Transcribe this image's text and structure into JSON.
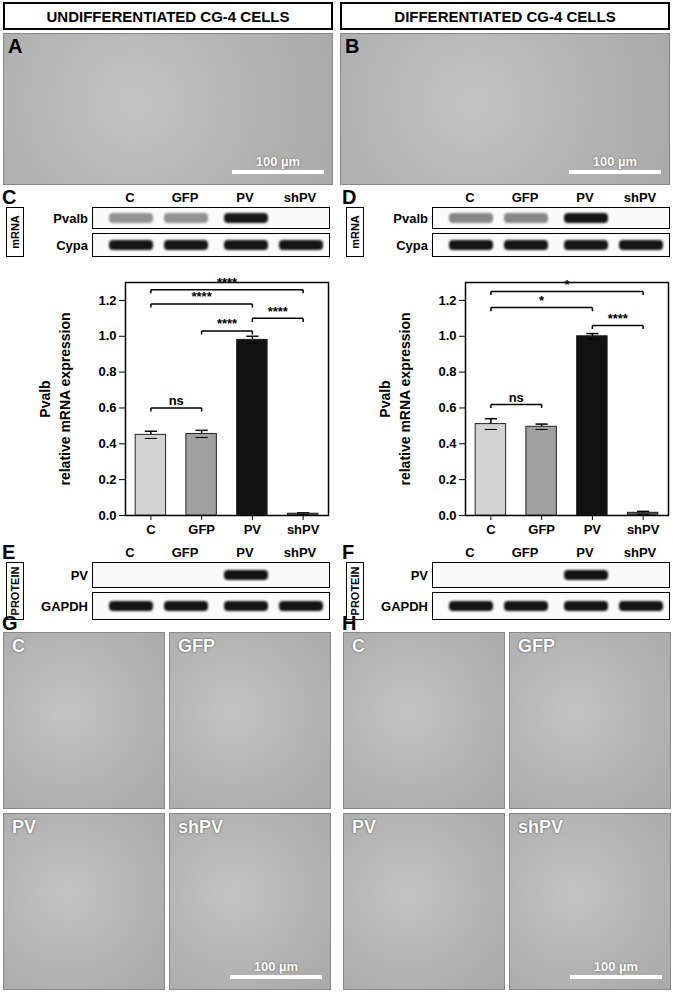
{
  "header": [
    "UNDIFFERENTIATED CG-4 CELLS",
    "DIFFERENTIATED CG-4 CELLS"
  ],
  "panels": {
    "A": {
      "letter": "A",
      "scale_bar": "100 µm"
    },
    "B": {
      "letter": "B",
      "scale_bar": "100 µm"
    },
    "C": {
      "letter": "C",
      "box_label": "mRNA",
      "lanes": [
        "C",
        "GFP",
        "PV",
        "shPV"
      ],
      "rows": [
        {
          "name": "Pvalb",
          "band_intensity": [
            0.45,
            0.45,
            0.98,
            0
          ]
        },
        {
          "name": "Cypa",
          "band_intensity": [
            1,
            1,
            1,
            1
          ]
        }
      ]
    },
    "D": {
      "letter": "D",
      "box_label": "mRNA",
      "lanes": [
        "C",
        "GFP",
        "PV",
        "shPV"
      ],
      "rows": [
        {
          "name": "Pvalb",
          "band_intensity": [
            0.5,
            0.5,
            1,
            0
          ]
        },
        {
          "name": "Cypa",
          "band_intensity": [
            1,
            1,
            1,
            1
          ]
        }
      ]
    },
    "E": {
      "letter": "E",
      "box_label": "PROTEIN",
      "lanes": [
        "C",
        "GFP",
        "PV",
        "shPV"
      ],
      "rows": [
        {
          "name": "PV",
          "band_intensity": [
            0,
            0,
            1,
            0
          ]
        },
        {
          "name": "GAPDH",
          "band_intensity": [
            1,
            1,
            1,
            1
          ]
        }
      ]
    },
    "F": {
      "letter": "F",
      "box_label": "PROTEIN",
      "lanes": [
        "C",
        "GFP",
        "PV",
        "shPV"
      ],
      "rows": [
        {
          "name": "PV",
          "band_intensity": [
            0,
            0,
            1,
            0
          ]
        },
        {
          "name": "GAPDH",
          "band_intensity": [
            1,
            1,
            1,
            1
          ]
        }
      ]
    },
    "G": {
      "letter": "G",
      "tiles": [
        "C",
        "GFP",
        "PV",
        "shPV"
      ],
      "scale_bar": "100 µm"
    },
    "H": {
      "letter": "H",
      "tiles": [
        "C",
        "GFP",
        "PV",
        "shPV"
      ],
      "scale_bar": "100 µm"
    }
  },
  "chart_data": [
    {
      "type": "bar",
      "ylabel": [
        "Pvalb",
        "relative mRNA expression"
      ],
      "categories": [
        "C",
        "GFP",
        "PV",
        "shPV"
      ],
      "values": [
        0.45,
        0.455,
        0.98,
        0.01
      ],
      "errors": [
        0.02,
        0.02,
        0.02,
        0.005
      ],
      "colors": [
        "#d3d3d3",
        "#a0a0a0",
        "#111111",
        "#555555"
      ],
      "ylim": [
        0,
        1.3
      ],
      "yticks": [
        {
          "value": 0,
          "label": "0.0"
        },
        0.2,
        0.4,
        0.6,
        0.8,
        {
          "value": 1,
          "label": "1.0"
        },
        1.2
      ],
      "annotations": [
        {
          "from": "C",
          "to": "GFP",
          "y": 0.6,
          "text": "ns"
        },
        {
          "from": "GFP",
          "to": "PV",
          "y": 1.03,
          "text": "****"
        },
        {
          "from": "PV",
          "to": "shPV",
          "y": 1.1,
          "text": "****"
        },
        {
          "from": "C",
          "to": "PV",
          "y": 1.18,
          "text": "****"
        },
        {
          "from": "C",
          "to": "shPV",
          "y": 1.26,
          "text": "****"
        }
      ]
    },
    {
      "type": "bar",
      "ylabel": [
        "Pvalb",
        "relative mRNA expression"
      ],
      "categories": [
        "C",
        "GFP",
        "PV",
        "shPV"
      ],
      "values": [
        0.51,
        0.495,
        1.0,
        0.015
      ],
      "errors": [
        0.03,
        0.015,
        0.015,
        0.008
      ],
      "colors": [
        "#d3d3d3",
        "#a0a0a0",
        "#111111",
        "#555555"
      ],
      "ylim": [
        0,
        1.3
      ],
      "yticks": [
        {
          "value": 0,
          "label": "0.0"
        },
        0.2,
        0.4,
        0.6,
        0.8,
        {
          "value": 1,
          "label": "1.0"
        },
        1.2
      ],
      "annotations": [
        {
          "from": "C",
          "to": "GFP",
          "y": 0.62,
          "text": "ns"
        },
        {
          "from": "PV",
          "to": "shPV",
          "y": 1.06,
          "text": "****"
        },
        {
          "from": "C",
          "to": "PV",
          "y": 1.16,
          "text": "*"
        },
        {
          "from": "C",
          "to": "shPV",
          "y": 1.25,
          "text": "*"
        }
      ]
    }
  ]
}
